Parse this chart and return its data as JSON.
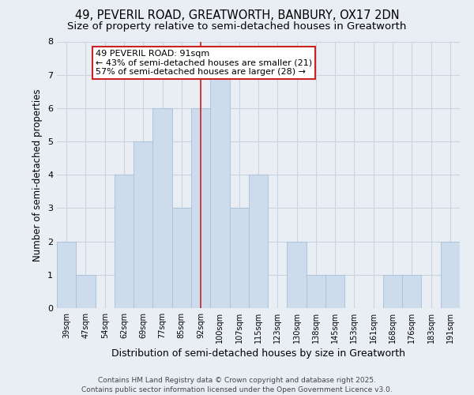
{
  "title": "49, PEVERIL ROAD, GREATWORTH, BANBURY, OX17 2DN",
  "subtitle": "Size of property relative to semi-detached houses in Greatworth",
  "xlabel": "Distribution of semi-detached houses by size in Greatworth",
  "ylabel": "Number of semi-detached properties",
  "categories": [
    "39sqm",
    "47sqm",
    "54sqm",
    "62sqm",
    "69sqm",
    "77sqm",
    "85sqm",
    "92sqm",
    "100sqm",
    "107sqm",
    "115sqm",
    "123sqm",
    "130sqm",
    "138sqm",
    "145sqm",
    "153sqm",
    "161sqm",
    "168sqm",
    "176sqm",
    "183sqm",
    "191sqm"
  ],
  "values": [
    2,
    1,
    0,
    4,
    5,
    6,
    3,
    6,
    7,
    3,
    4,
    0,
    2,
    1,
    1,
    0,
    0,
    1,
    1,
    0,
    2
  ],
  "bar_color": "#ccdcec",
  "bar_edgecolor": "#adc4d8",
  "subject_bar_index": 7,
  "subject_label": "49 PEVERIL ROAD: 91sqm",
  "pct_smaller": 43,
  "n_smaller": 21,
  "pct_larger": 57,
  "n_larger": 28,
  "annotation_box_facecolor": "#ffffff",
  "annotation_box_edgecolor": "#cc2222",
  "vline_color": "#cc2222",
  "ylim": [
    0,
    8
  ],
  "yticks": [
    0,
    1,
    2,
    3,
    4,
    5,
    6,
    7,
    8
  ],
  "grid_color": "#c8d4e0",
  "background_color": "#e8eef4",
  "footer": "Contains HM Land Registry data © Crown copyright and database right 2025.\nContains public sector information licensed under the Open Government Licence v3.0.",
  "title_fontsize": 10.5,
  "subtitle_fontsize": 9.5,
  "xlabel_fontsize": 9,
  "ylabel_fontsize": 8.5,
  "tick_fontsize": 7,
  "annotation_fontsize": 8,
  "footer_fontsize": 6.5
}
